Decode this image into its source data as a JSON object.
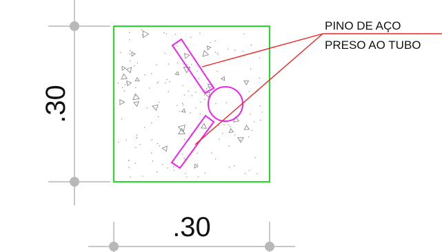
{
  "drawing": {
    "section_width_label": ".30",
    "section_height_label": ".30",
    "annotation": {
      "line1": "PINO DE AÇO",
      "line2": "PRESO AO TUBO"
    }
  },
  "colors": {
    "section_outline": "#22dd22",
    "steel_pin": "#ee22ee",
    "leader_line": "#ee2222",
    "dimension_line": "#c8c8c8",
    "dimension_point": "#b8b8b8",
    "concrete_hatch": "#8a8a8a",
    "text": "#111111"
  }
}
